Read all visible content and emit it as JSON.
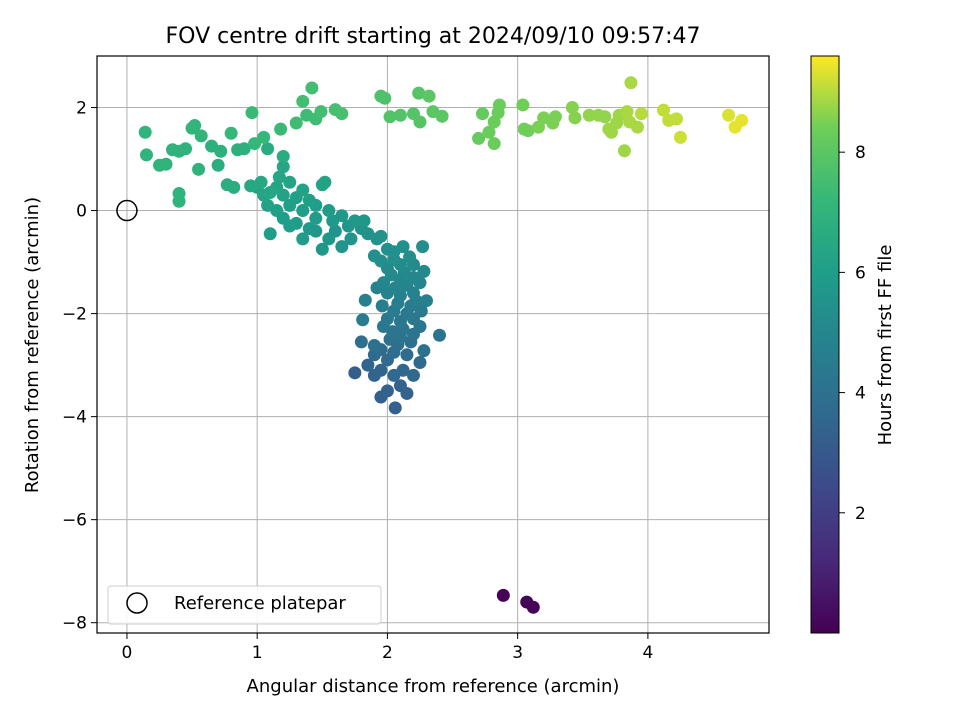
{
  "chart_data": {
    "type": "scatter",
    "title": "FOV centre drift starting at 2024/09/10 09:57:47",
    "xlabel": "Angular distance from reference (arcmin)",
    "ylabel": "Rotation from reference (arcmin)",
    "xlim": [
      -0.23,
      4.93
    ],
    "ylim": [
      -8.2,
      3.0
    ],
    "xticks": [
      0,
      1,
      2,
      3,
      4
    ],
    "yticks": [
      -8,
      -6,
      -4,
      -2,
      0,
      2
    ],
    "xtick_labels": [
      "0",
      "1",
      "2",
      "3",
      "4"
    ],
    "ytick_labels": [
      "−8",
      "−6",
      "−4",
      "−2",
      "0",
      "2"
    ],
    "grid": true,
    "legend": {
      "location": "lower left",
      "entries": [
        "Reference platepar"
      ]
    },
    "reference_point": {
      "x": 0.0,
      "y": 0.0,
      "label": "Reference platepar"
    },
    "colorbar": {
      "label": "Hours from first FF file",
      "colormap": "viridis",
      "min": 0.0,
      "max": 9.6,
      "ticks": [
        2,
        4,
        6,
        8
      ],
      "tick_labels": [
        "2",
        "4",
        "6",
        "8"
      ]
    },
    "series": [
      {
        "points": [
          [
            2.89,
            -7.47,
            0.05
          ],
          [
            3.07,
            -7.6,
            0.1
          ],
          [
            3.12,
            -7.7,
            0.15
          ],
          [
            1.75,
            -3.15,
            3.2
          ],
          [
            1.95,
            -3.62,
            3.3
          ],
          [
            2.06,
            -3.83,
            3.3
          ],
          [
            2.15,
            -3.55,
            3.4
          ],
          [
            2.1,
            -3.4,
            3.4
          ],
          [
            2.0,
            -3.5,
            3.4
          ],
          [
            1.9,
            -3.2,
            3.5
          ],
          [
            1.85,
            -3.0,
            3.5
          ],
          [
            1.95,
            -3.1,
            3.5
          ],
          [
            2.05,
            -3.2,
            3.6
          ],
          [
            2.12,
            -3.1,
            3.6
          ],
          [
            2.2,
            -3.2,
            3.6
          ],
          [
            2.25,
            -2.95,
            3.7
          ],
          [
            2.0,
            -2.9,
            3.7
          ],
          [
            1.9,
            -2.8,
            3.7
          ],
          [
            1.95,
            -2.7,
            3.8
          ],
          [
            2.05,
            -2.75,
            3.8
          ],
          [
            2.15,
            -2.8,
            3.8
          ],
          [
            2.08,
            -2.6,
            3.9
          ],
          [
            2.18,
            -2.55,
            3.9
          ],
          [
            1.8,
            -2.55,
            3.9
          ],
          [
            1.9,
            -2.62,
            4.0
          ],
          [
            2.28,
            -2.72,
            4.0
          ],
          [
            2.02,
            -2.5,
            4.0
          ],
          [
            2.1,
            -2.45,
            4.1
          ],
          [
            2.2,
            -2.4,
            4.1
          ],
          [
            2.12,
            -2.3,
            4.2
          ],
          [
            2.04,
            -2.35,
            4.2
          ],
          [
            2.25,
            -2.25,
            4.2
          ],
          [
            1.97,
            -2.25,
            4.3
          ],
          [
            2.1,
            -2.15,
            4.3
          ],
          [
            2.2,
            -2.1,
            4.3
          ],
          [
            2.4,
            -2.42,
            4.1
          ],
          [
            2.0,
            -2.1,
            4.4
          ],
          [
            2.15,
            -2.0,
            4.4
          ],
          [
            2.26,
            -1.95,
            4.4
          ],
          [
            2.05,
            -1.95,
            4.5
          ],
          [
            2.18,
            -1.85,
            4.5
          ],
          [
            1.81,
            -2.12,
            4.5
          ],
          [
            1.96,
            -1.85,
            4.6
          ],
          [
            2.08,
            -1.8,
            4.6
          ],
          [
            2.22,
            -1.75,
            4.6
          ],
          [
            2.3,
            -1.75,
            4.7
          ],
          [
            1.83,
            -1.74,
            4.7
          ],
          [
            2.1,
            -1.65,
            4.7
          ],
          [
            2.0,
            -1.6,
            4.8
          ],
          [
            2.2,
            -1.6,
            4.8
          ],
          [
            1.92,
            -1.5,
            4.8
          ],
          [
            2.06,
            -1.5,
            4.9
          ],
          [
            2.15,
            -1.45,
            4.9
          ],
          [
            2.25,
            -1.4,
            4.9
          ],
          [
            1.97,
            -1.4,
            5.0
          ],
          [
            2.1,
            -1.35,
            5.0
          ],
          [
            2.2,
            -1.3,
            5.0
          ],
          [
            2.03,
            -1.25,
            5.1
          ],
          [
            2.13,
            -1.2,
            5.1
          ],
          [
            2.28,
            -1.18,
            5.1
          ],
          [
            2.0,
            -1.12,
            5.2
          ],
          [
            2.1,
            -1.05,
            5.2
          ],
          [
            2.2,
            -1.05,
            5.2
          ],
          [
            1.95,
            -0.98,
            5.3
          ],
          [
            2.05,
            -0.95,
            5.3
          ],
          [
            2.17,
            -0.9,
            5.3
          ],
          [
            2.27,
            -0.7,
            5.3
          ],
          [
            2.05,
            -0.8,
            5.4
          ],
          [
            2.12,
            -0.7,
            5.4
          ],
          [
            1.9,
            -0.88,
            5.4
          ],
          [
            2.0,
            -0.75,
            5.4
          ],
          [
            1.92,
            -0.55,
            5.5
          ],
          [
            1.85,
            -0.45,
            5.5
          ],
          [
            1.95,
            -0.5,
            5.5
          ],
          [
            1.8,
            -0.35,
            5.5
          ],
          [
            1.72,
            -0.55,
            5.6
          ],
          [
            1.65,
            -0.7,
            5.6
          ],
          [
            1.6,
            -0.4,
            5.6
          ],
          [
            1.7,
            -0.3,
            5.6
          ],
          [
            1.82,
            -0.2,
            5.7
          ],
          [
            1.55,
            -0.55,
            5.7
          ],
          [
            1.5,
            -0.75,
            5.7
          ],
          [
            1.45,
            -0.4,
            5.7
          ],
          [
            1.58,
            -0.2,
            5.8
          ],
          [
            1.65,
            -0.1,
            5.8
          ],
          [
            1.75,
            -0.2,
            5.8
          ],
          [
            1.4,
            -0.35,
            5.8
          ],
          [
            1.35,
            -0.55,
            5.9
          ],
          [
            1.3,
            -0.25,
            5.9
          ],
          [
            1.45,
            -0.15,
            5.9
          ],
          [
            1.55,
            0.0,
            5.9
          ],
          [
            1.25,
            -0.3,
            6.0
          ],
          [
            1.2,
            -0.15,
            6.0
          ],
          [
            1.35,
            0.0,
            6.0
          ],
          [
            1.45,
            0.1,
            6.0
          ],
          [
            1.1,
            -0.45,
            6.0
          ],
          [
            1.15,
            0.0,
            6.1
          ],
          [
            1.25,
            0.1,
            6.1
          ],
          [
            1.4,
            0.2,
            6.1
          ],
          [
            1.3,
            0.25,
            6.1
          ],
          [
            1.08,
            0.1,
            6.2
          ],
          [
            1.2,
            0.3,
            6.2
          ],
          [
            1.35,
            0.4,
            6.2
          ],
          [
            1.5,
            0.5,
            6.2
          ],
          [
            1.52,
            0.55,
            6.2
          ],
          [
            1.05,
            0.3,
            6.3
          ],
          [
            1.15,
            0.45,
            6.3
          ],
          [
            1.25,
            0.55,
            6.3
          ],
          [
            1.0,
            0.45,
            6.3
          ],
          [
            1.1,
            0.35,
            6.4
          ],
          [
            1.17,
            0.65,
            6.4
          ],
          [
            1.2,
            0.85,
            6.4
          ],
          [
            0.95,
            0.48,
            6.5
          ],
          [
            1.03,
            0.55,
            6.5
          ],
          [
            1.2,
            1.05,
            6.6
          ],
          [
            1.08,
            1.2,
            6.6
          ],
          [
            0.82,
            0.45,
            6.7
          ],
          [
            0.77,
            0.5,
            6.7
          ],
          [
            0.7,
            0.88,
            6.7
          ],
          [
            0.9,
            1.2,
            6.8
          ],
          [
            0.85,
            1.18,
            6.8
          ],
          [
            0.65,
            1.25,
            6.8
          ],
          [
            0.72,
            1.15,
            6.8
          ],
          [
            0.55,
            0.8,
            6.9
          ],
          [
            0.45,
            1.2,
            6.9
          ],
          [
            0.4,
            1.15,
            6.9
          ],
          [
            0.35,
            1.18,
            6.9
          ],
          [
            0.3,
            0.9,
            7.0
          ],
          [
            0.25,
            0.88,
            7.0
          ],
          [
            0.15,
            1.08,
            7.0
          ],
          [
            0.14,
            1.52,
            7.0
          ],
          [
            0.4,
            0.33,
            7.0
          ],
          [
            0.4,
            0.18,
            7.0
          ],
          [
            0.5,
            1.6,
            7.1
          ],
          [
            0.52,
            1.65,
            7.1
          ],
          [
            0.57,
            1.45,
            7.1
          ],
          [
            0.8,
            1.5,
            7.2
          ],
          [
            0.98,
            1.3,
            7.2
          ],
          [
            1.05,
            1.42,
            7.2
          ],
          [
            0.96,
            1.9,
            7.3
          ],
          [
            1.18,
            1.58,
            7.3
          ],
          [
            1.3,
            1.7,
            7.4
          ],
          [
            1.38,
            1.85,
            7.4
          ],
          [
            1.45,
            1.78,
            7.4
          ],
          [
            1.35,
            2.12,
            7.5
          ],
          [
            1.42,
            2.38,
            7.5
          ],
          [
            1.49,
            1.92,
            7.5
          ],
          [
            1.6,
            1.96,
            7.6
          ],
          [
            1.65,
            1.88,
            7.6
          ],
          [
            1.95,
            2.22,
            7.7
          ],
          [
            1.98,
            2.18,
            7.7
          ],
          [
            2.02,
            1.82,
            7.8
          ],
          [
            2.1,
            1.85,
            7.8
          ],
          [
            2.2,
            1.88,
            7.9
          ],
          [
            2.25,
            1.72,
            7.9
          ],
          [
            2.24,
            2.28,
            7.9
          ],
          [
            2.32,
            2.22,
            8.0
          ],
          [
            2.35,
            1.92,
            8.0
          ],
          [
            2.42,
            1.83,
            8.0
          ],
          [
            2.7,
            1.4,
            8.2
          ],
          [
            2.73,
            1.88,
            8.2
          ],
          [
            2.78,
            1.52,
            8.3
          ],
          [
            2.82,
            1.3,
            8.3
          ],
          [
            2.82,
            1.72,
            8.3
          ],
          [
            2.85,
            1.9,
            8.3
          ],
          [
            2.86,
            2.05,
            8.3
          ],
          [
            3.04,
            2.05,
            8.4
          ],
          [
            3.05,
            1.58,
            8.4
          ],
          [
            3.08,
            1.55,
            8.4
          ],
          [
            3.16,
            1.62,
            8.5
          ],
          [
            3.2,
            1.8,
            8.5
          ],
          [
            3.27,
            1.7,
            8.5
          ],
          [
            3.29,
            1.82,
            8.5
          ],
          [
            3.42,
            2.0,
            8.6
          ],
          [
            3.44,
            1.8,
            8.6
          ],
          [
            3.55,
            1.85,
            8.7
          ],
          [
            3.62,
            1.85,
            8.7
          ],
          [
            3.67,
            1.82,
            8.7
          ],
          [
            3.7,
            1.58,
            8.8
          ],
          [
            3.72,
            1.52,
            8.8
          ],
          [
            3.76,
            1.7,
            8.8
          ],
          [
            3.78,
            1.85,
            8.8
          ],
          [
            3.82,
            1.16,
            8.8
          ],
          [
            3.84,
            1.92,
            8.9
          ],
          [
            3.86,
            1.72,
            8.9
          ],
          [
            3.87,
            2.48,
            8.9
          ],
          [
            3.92,
            1.62,
            8.9
          ],
          [
            3.95,
            1.88,
            9.0
          ],
          [
            4.12,
            1.95,
            9.1
          ],
          [
            4.16,
            1.75,
            9.1
          ],
          [
            4.22,
            1.78,
            9.1
          ],
          [
            4.25,
            1.42,
            9.2
          ],
          [
            4.62,
            1.85,
            9.3
          ],
          [
            4.67,
            1.62,
            9.4
          ],
          [
            4.72,
            1.75,
            9.4
          ]
        ]
      }
    ]
  }
}
